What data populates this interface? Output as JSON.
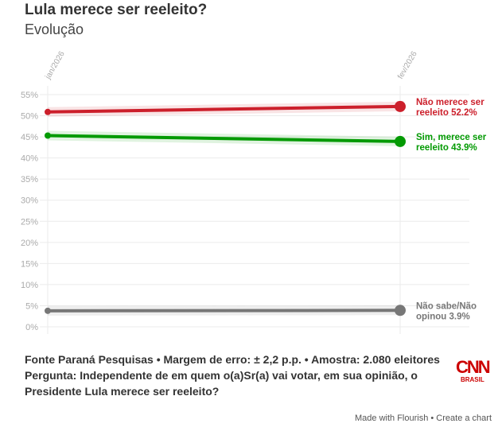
{
  "title": "Lula merece ser reeleito?",
  "subtitle": "Evolução",
  "footer": {
    "source": "Fonte Paraná Pesquisas • Margem de erro: ± 2,2 p.p. • Amostra: 2.080 eleitores",
    "question": "Pergunta: Independente de em quem o(a)Sr(a) vai votar, em sua opinião, o Presidente Lula merece ser reeleito?"
  },
  "logo": {
    "main": "CNN",
    "sub": "BRASIL"
  },
  "credit": {
    "made": "Made with Flourish",
    "sep": " • ",
    "create": "Create a chart"
  },
  "chart_data": {
    "type": "line",
    "x": [
      "jan/2026",
      "fev/2026"
    ],
    "ylim": [
      0,
      55
    ],
    "yticks": [
      "0%",
      "5%",
      "10%",
      "15%",
      "20%",
      "25%",
      "30%",
      "35%",
      "40%",
      "45%",
      "50%",
      "55%"
    ],
    "series": [
      {
        "name": "Não merece ser reeleito",
        "values": [
          50.9,
          52.2
        ],
        "color": "#cc1f2b",
        "label": [
          "Não merece ser",
          "reeleito 52.2%"
        ]
      },
      {
        "name": "Sim, merece ser reeleito",
        "values": [
          45.3,
          43.9
        ],
        "color": "#039a03",
        "label": [
          "Sim, merece ser",
          "reeleito 43.9%"
        ]
      },
      {
        "name": "Não sabe/Não opinou",
        "values": [
          3.8,
          3.9
        ],
        "color": "#777777",
        "label": [
          "Não sabe/Não",
          "opinou 3.9%"
        ]
      }
    ]
  }
}
